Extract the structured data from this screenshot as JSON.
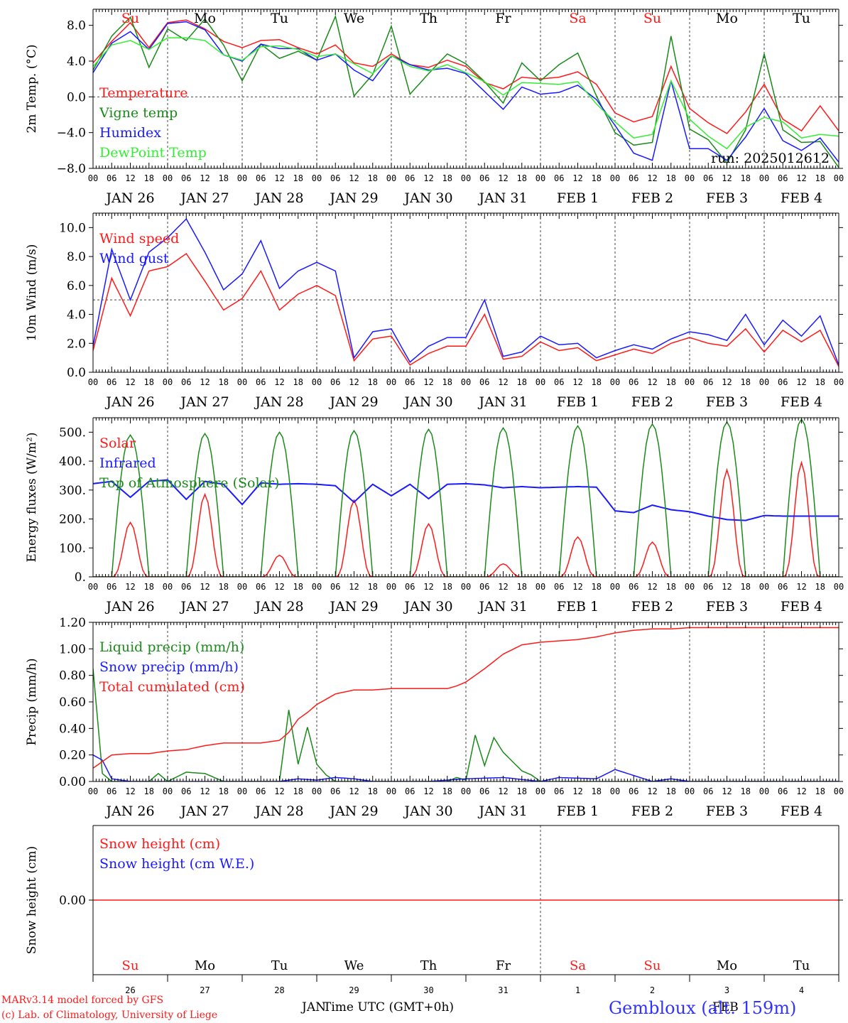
{
  "footer": {
    "model_line": "MARv3.14 model forced by GFS",
    "copyright_line": "(c) Lab. of Climatology, University of Liege",
    "xlabel": "Time UTC (GMT+0h)",
    "jan_label": "JAN",
    "feb_label": "FEB",
    "station": "Gembloux (alt. 159m)"
  },
  "colors": {
    "red": "#ff1a1a",
    "green": "#1a8a1a",
    "blue": "#1a1aff",
    "lightgreen": "#33ee33",
    "axis": "#000000",
    "station": "#3333ff"
  },
  "chart_data": [
    {
      "id": "temperature",
      "type": "line",
      "ylabel": "2m Temp. (°C)",
      "ylim": [
        -8,
        9.8
      ],
      "yticks": [
        8.0,
        4.0,
        0.0,
        -4.0,
        -8.0
      ],
      "ytick_labels": [
        "8.0",
        "4.0",
        "0.0",
        "−4.0",
        "−8.0"
      ],
      "zero_line": 0.0,
      "run_label": "run: 2025012612",
      "xticks_hours": [
        "00",
        "06",
        "12",
        "18"
      ],
      "dates": [
        "JAN 26",
        "JAN 27",
        "JAN 28",
        "JAN 29",
        "JAN 30",
        "JAN 31",
        "FEB  1",
        "FEB  2",
        "FEB  3",
        "FEB  4"
      ],
      "weekdays": [
        "Su",
        "Mo",
        "Tu",
        "We",
        "Th",
        "Fr",
        "Sa",
        "Su",
        "Mo",
        "Tu"
      ],
      "weekend": [
        true,
        false,
        false,
        false,
        false,
        false,
        true,
        true,
        false,
        false
      ],
      "series": [
        {
          "name": "Temperature",
          "color": "red",
          "x": [
            0,
            6,
            12,
            18,
            24,
            30,
            36,
            42,
            48,
            54,
            60,
            66,
            72,
            78,
            84,
            90,
            96,
            102,
            108,
            114,
            120,
            126,
            132,
            138,
            144,
            150,
            156,
            162,
            168,
            174,
            180,
            186,
            192,
            198,
            204,
            210,
            216,
            222,
            228,
            234,
            240
          ],
          "y": [
            3.8,
            6.2,
            8.3,
            5.5,
            8.3,
            8.6,
            7.6,
            6.2,
            5.5,
            6.3,
            6.4,
            5.5,
            4.8,
            5.8,
            3.8,
            3.4,
            4.8,
            3.6,
            3.3,
            4.1,
            3.4,
            1.6,
            0.9,
            2.2,
            2.0,
            2.2,
            2.8,
            1.4,
            -1.8,
            -2.8,
            -2.2,
            3.4,
            -1.3,
            -2.9,
            -4.1,
            -1.7,
            1.4,
            -2.5,
            -3.8,
            -1.0,
            -3.8
          ]
        },
        {
          "name": "Vigne temp",
          "color": "green",
          "x": [
            0,
            6,
            12,
            18,
            24,
            30,
            36,
            42,
            48,
            54,
            60,
            66,
            72,
            78,
            84,
            90,
            96,
            102,
            108,
            114,
            120,
            126,
            132,
            138,
            144,
            150,
            156,
            162,
            168,
            174,
            180,
            186,
            192,
            198,
            204,
            210,
            216,
            222,
            228,
            234,
            240
          ],
          "y": [
            3.0,
            6.8,
            8.9,
            3.3,
            7.6,
            6.3,
            8.7,
            5.8,
            1.8,
            5.9,
            4.3,
            5.1,
            4.1,
            9.0,
            0.1,
            2.5,
            7.9,
            0.3,
            2.6,
            4.8,
            3.7,
            1.7,
            -0.7,
            3.8,
            1.8,
            3.6,
            4.9,
            0.1,
            -4.0,
            -5.4,
            -5.1,
            6.8,
            -3.6,
            -4.8,
            -7.4,
            -3.7,
            4.8,
            -3.7,
            -5.1,
            -5.0,
            -7.9
          ]
        },
        {
          "name": "Humidex",
          "color": "blue",
          "x": [
            0,
            6,
            12,
            18,
            24,
            30,
            36,
            42,
            48,
            54,
            60,
            66,
            72,
            78,
            84,
            90,
            96,
            102,
            108,
            114,
            120,
            126,
            132,
            138,
            144,
            150,
            156,
            162,
            168,
            174,
            180,
            186,
            192,
            198,
            204,
            210,
            216,
            222,
            228,
            234,
            240
          ],
          "y": [
            2.7,
            6.0,
            7.3,
            5.3,
            8.2,
            8.4,
            7.5,
            4.7,
            4.0,
            5.9,
            5.4,
            5.4,
            4.1,
            4.8,
            3.0,
            1.8,
            4.6,
            3.6,
            3.0,
            3.2,
            2.6,
            0.6,
            -1.4,
            1.1,
            0.3,
            0.5,
            1.3,
            -0.3,
            -3.2,
            -6.3,
            -7.1,
            1.8,
            -5.8,
            -5.8,
            -7.1,
            -4.5,
            -1.3,
            -4.9,
            -6.0,
            -4.6,
            -7.3
          ]
        },
        {
          "name": "DewPoint Temp",
          "color": "lightgreen",
          "x": [
            0,
            6,
            12,
            18,
            24,
            30,
            36,
            42,
            48,
            54,
            60,
            66,
            72,
            78,
            84,
            90,
            96,
            102,
            108,
            114,
            120,
            126,
            132,
            138,
            144,
            150,
            156,
            162,
            168,
            174,
            180,
            186,
            192,
            198,
            204,
            210,
            216,
            222,
            228,
            234,
            240
          ],
          "y": [
            3.4,
            5.8,
            6.3,
            5.3,
            6.6,
            6.6,
            6.3,
            4.7,
            4.1,
            5.6,
            5.7,
            5.3,
            4.5,
            4.8,
            3.7,
            2.6,
            4.6,
            3.4,
            2.9,
            3.6,
            2.7,
            1.7,
            0.2,
            1.6,
            1.5,
            1.4,
            1.7,
            -0.8,
            -2.8,
            -4.6,
            -4.2,
            1.8,
            -2.5,
            -4.4,
            -5.8,
            -3.4,
            -2.3,
            -2.8,
            -4.6,
            -4.2,
            -4.4
          ]
        }
      ]
    },
    {
      "id": "wind",
      "type": "line",
      "ylabel": "10m Wind (m/s)",
      "ylim": [
        0,
        11.0
      ],
      "yticks": [
        10.0,
        8.0,
        6.0,
        4.0,
        2.0,
        0.0
      ],
      "ytick_labels": [
        "10.0",
        "8.0",
        "6.0",
        "4.0",
        "2.0",
        "0.0"
      ],
      "ref_line": 5.0,
      "xticks_hours": [
        "00",
        "06",
        "12",
        "18"
      ],
      "dates": [
        "JAN 26",
        "JAN 27",
        "JAN 28",
        "JAN 29",
        "JAN 30",
        "JAN 31",
        "FEB  1",
        "FEB  2",
        "FEB  3",
        "FEB  4"
      ],
      "series": [
        {
          "name": "Wind speed",
          "color": "red",
          "x": [
            0,
            6,
            12,
            18,
            24,
            30,
            36,
            42,
            48,
            54,
            60,
            66,
            72,
            78,
            84,
            90,
            96,
            102,
            108,
            114,
            120,
            126,
            132,
            138,
            144,
            150,
            156,
            162,
            168,
            174,
            180,
            186,
            192,
            198,
            204,
            210,
            216,
            222,
            228,
            234,
            240
          ],
          "y": [
            1.5,
            6.5,
            3.9,
            7.0,
            7.3,
            8.2,
            6.3,
            4.3,
            5.1,
            7.0,
            4.3,
            5.4,
            6.0,
            5.3,
            0.8,
            2.3,
            2.5,
            0.5,
            1.3,
            1.8,
            1.8,
            4.0,
            0.9,
            1.1,
            2.1,
            1.5,
            1.7,
            0.8,
            1.2,
            1.6,
            1.3,
            2.0,
            2.4,
            2.0,
            1.8,
            3.0,
            1.4,
            2.9,
            2.1,
            2.9,
            0.4
          ]
        },
        {
          "name": "Wind gust",
          "color": "blue",
          "x": [
            0,
            6,
            12,
            18,
            24,
            30,
            36,
            42,
            48,
            54,
            60,
            66,
            72,
            78,
            84,
            90,
            96,
            102,
            108,
            114,
            120,
            126,
            132,
            138,
            144,
            150,
            156,
            162,
            168,
            174,
            180,
            186,
            192,
            198,
            204,
            210,
            216,
            222,
            228,
            234,
            240
          ],
          "y": [
            1.8,
            8.5,
            5.0,
            8.3,
            9.3,
            10.6,
            8.3,
            5.7,
            6.8,
            9.1,
            5.8,
            7.0,
            7.6,
            7.0,
            1.0,
            2.8,
            3.0,
            0.7,
            1.8,
            2.4,
            2.4,
            5.0,
            1.1,
            1.4,
            2.5,
            1.9,
            2.0,
            1.0,
            1.5,
            1.9,
            1.6,
            2.3,
            2.8,
            2.6,
            2.2,
            4.0,
            1.9,
            3.6,
            2.5,
            3.9,
            0.5
          ]
        }
      ]
    },
    {
      "id": "energy",
      "type": "line",
      "ylabel": "Energy fluxes (W/m²)",
      "ylim": [
        0,
        550
      ],
      "yticks": [
        500,
        400,
        300,
        200,
        100,
        0
      ],
      "ytick_labels": [
        "500.",
        "400.",
        "300.",
        "200.",
        "100.",
        "0."
      ],
      "xticks_hours": [
        "00",
        "06",
        "12",
        "18"
      ],
      "dates": [
        "JAN 26",
        "JAN 27",
        "JAN 28",
        "JAN 29",
        "JAN 30",
        "JAN 31",
        "FEB  1",
        "FEB  2",
        "FEB  3",
        "FEB  4"
      ],
      "daily_peaks": {
        "toa_solar": [
          490,
          495,
          500,
          505,
          510,
          515,
          522,
          528,
          535,
          545
        ],
        "solar": [
          188,
          285,
          75,
          265,
          183,
          45,
          138,
          120,
          370,
          395
        ]
      },
      "series": [
        {
          "name": "Solar",
          "color": "red"
        },
        {
          "name": "Infrared",
          "color": "blue",
          "x": [
            0,
            6,
            12,
            18,
            24,
            30,
            36,
            42,
            48,
            54,
            60,
            66,
            72,
            78,
            84,
            90,
            96,
            102,
            108,
            114,
            120,
            126,
            132,
            138,
            144,
            150,
            156,
            162,
            168,
            174,
            180,
            186,
            192,
            198,
            204,
            210,
            216,
            222,
            228,
            234,
            240
          ],
          "y": [
            322,
            330,
            275,
            330,
            335,
            268,
            330,
            320,
            250,
            325,
            320,
            322,
            320,
            315,
            258,
            320,
            280,
            320,
            270,
            320,
            322,
            318,
            308,
            312,
            308,
            310,
            312,
            310,
            228,
            222,
            248,
            232,
            225,
            210,
            198,
            195,
            212,
            210,
            210,
            210,
            210
          ]
        },
        {
          "name": "Top of Atmosphere (Solar)",
          "color": "green"
        }
      ]
    },
    {
      "id": "precip",
      "type": "line",
      "ylabel": "Precip (mm/h)",
      "ylim": [
        0,
        1.2
      ],
      "yticks": [
        1.2,
        1.0,
        0.8,
        0.6,
        0.4,
        0.2,
        0.0
      ],
      "ytick_labels": [
        "1.20",
        "1.00",
        "0.80",
        "0.60",
        "0.40",
        "0.20",
        "0.00"
      ],
      "xticks_hours": [
        "00",
        "06",
        "12",
        "18"
      ],
      "dates": [
        "JAN 26",
        "JAN 27",
        "JAN 28",
        "JAN 29",
        "JAN 30",
        "JAN 31",
        "FEB  1",
        "FEB  2",
        "FEB  3",
        "FEB  4"
      ],
      "series": [
        {
          "name": "Liquid precip (mm/h)",
          "color": "green",
          "x": [
            0,
            3,
            6,
            12,
            18,
            21,
            24,
            30,
            36,
            42,
            48,
            60,
            63,
            66,
            69,
            72,
            75,
            78,
            84,
            90,
            96,
            114,
            117,
            120,
            123,
            126,
            129,
            132,
            135,
            138,
            141,
            144,
            168,
            192,
            240
          ],
          "y": [
            0.85,
            0.06,
            0.0,
            0.0,
            0.0,
            0.06,
            0.0,
            0.07,
            0.06,
            0.0,
            0.0,
            0.0,
            0.54,
            0.13,
            0.41,
            0.13,
            0.05,
            0.0,
            0.0,
            0.0,
            0.0,
            0.0,
            0.03,
            0.01,
            0.35,
            0.12,
            0.33,
            0.22,
            0.15,
            0.08,
            0.05,
            0.0,
            0.0,
            0.0,
            0.0
          ]
        },
        {
          "name": "Snow precip (mm/h)",
          "color": "blue",
          "x": [
            0,
            3,
            6,
            12,
            60,
            66,
            72,
            78,
            84,
            90,
            108,
            120,
            132,
            144,
            150,
            162,
            168,
            180,
            186,
            192,
            240
          ],
          "y": [
            0.2,
            0.16,
            0.02,
            0.0,
            0.0,
            0.02,
            0.01,
            0.03,
            0.02,
            0.0,
            0.0,
            0.02,
            0.03,
            0.0,
            0.03,
            0.02,
            0.09,
            0.0,
            0.02,
            0.0,
            0.0
          ]
        },
        {
          "name": "Total cumulated (cm)",
          "color": "red",
          "x": [
            0,
            6,
            12,
            18,
            24,
            30,
            36,
            42,
            48,
            54,
            60,
            63,
            66,
            69,
            72,
            78,
            84,
            90,
            96,
            102,
            108,
            114,
            117,
            120,
            126,
            132,
            138,
            144,
            150,
            156,
            162,
            168,
            174,
            180,
            186,
            192,
            198,
            204,
            210,
            216,
            222,
            228,
            234,
            240
          ],
          "y": [
            0.1,
            0.2,
            0.21,
            0.21,
            0.23,
            0.24,
            0.27,
            0.29,
            0.29,
            0.29,
            0.31,
            0.37,
            0.47,
            0.52,
            0.58,
            0.66,
            0.69,
            0.69,
            0.7,
            0.7,
            0.7,
            0.7,
            0.72,
            0.75,
            0.85,
            0.96,
            1.03,
            1.05,
            1.06,
            1.07,
            1.09,
            1.12,
            1.14,
            1.15,
            1.15,
            1.16,
            1.16,
            1.16,
            1.16,
            1.16,
            1.16,
            1.16,
            1.16,
            1.16
          ]
        }
      ]
    },
    {
      "id": "snow",
      "type": "line",
      "ylabel": "Snow height (cm)",
      "ylim": [
        -1,
        1
      ],
      "yticks": [
        0.0
      ],
      "ytick_labels": [
        "0.00"
      ],
      "day_numbers": [
        "26",
        "27",
        "28",
        "29",
        "30",
        "31",
        "1",
        "2",
        "3",
        "4"
      ],
      "weekdays": [
        "Su",
        "Mo",
        "Tu",
        "We",
        "Th",
        "Fr",
        "Sa",
        "Su",
        "Mo",
        "Tu"
      ],
      "weekend": [
        true,
        false,
        false,
        false,
        false,
        false,
        true,
        true,
        false,
        false
      ],
      "series": [
        {
          "name": "Snow height (cm)",
          "color": "red",
          "x": [
            0,
            240
          ],
          "y": [
            0.0,
            0.0
          ]
        },
        {
          "name": "Snow height (cm W.E.)",
          "color": "blue"
        }
      ]
    }
  ]
}
